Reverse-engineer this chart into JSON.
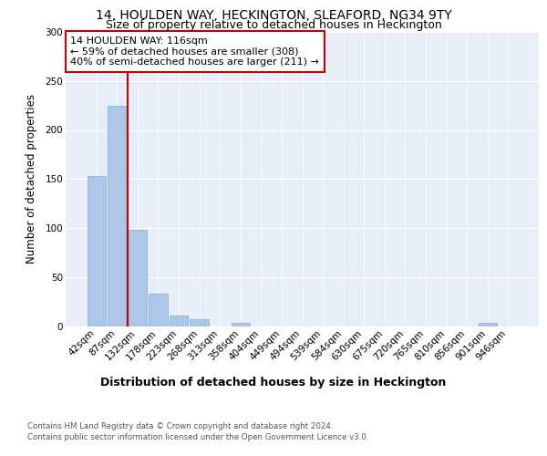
{
  "title": "14, HOULDEN WAY, HECKINGTON, SLEAFORD, NG34 9TY",
  "subtitle": "Size of property relative to detached houses in Heckington",
  "xlabel": "Distribution of detached houses by size in Heckington",
  "ylabel": "Number of detached properties",
  "bin_labels": [
    "42sqm",
    "87sqm",
    "132sqm",
    "178sqm",
    "223sqm",
    "268sqm",
    "313sqm",
    "358sqm",
    "404sqm",
    "449sqm",
    "494sqm",
    "539sqm",
    "584sqm",
    "630sqm",
    "675sqm",
    "720sqm",
    "765sqm",
    "810sqm",
    "856sqm",
    "901sqm",
    "946sqm"
  ],
  "bar_values": [
    153,
    225,
    98,
    33,
    11,
    7,
    0,
    3,
    0,
    0,
    0,
    0,
    0,
    0,
    0,
    0,
    0,
    0,
    0,
    3,
    0
  ],
  "bar_color": "#aec6e8",
  "bar_edge_color": "#7bafd4",
  "vline_color": "#cc0000",
  "vline_x_index": 1.5,
  "annotation_text": "14 HOULDEN WAY: 116sqm\n← 59% of detached houses are smaller (308)\n40% of semi-detached houses are larger (211) →",
  "annotation_box_facecolor": "#ffffff",
  "annotation_box_edgecolor": "#cc0000",
  "ylim": [
    0,
    300
  ],
  "yticks": [
    0,
    50,
    100,
    150,
    200,
    250,
    300
  ],
  "background_color": "#e8eef8",
  "grid_color": "#ffffff",
  "title_fontsize": 10,
  "subtitle_fontsize": 9,
  "ylabel_fontsize": 8.5,
  "xlabel_fontsize": 9,
  "tick_fontsize": 7.5,
  "footer_line1": "Contains HM Land Registry data © Crown copyright and database right 2024.",
  "footer_line2": "Contains public sector information licensed under the Open Government Licence v3.0."
}
